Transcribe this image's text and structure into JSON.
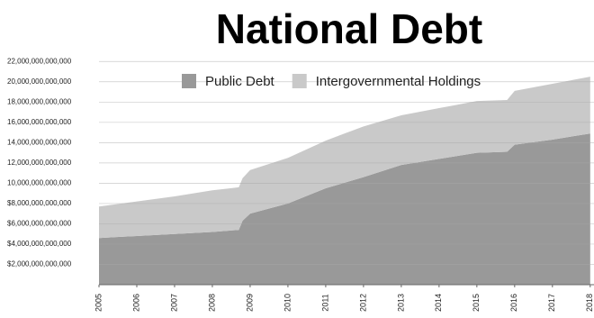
{
  "chart_data": {
    "type": "stacked-area",
    "title": "National Debt",
    "x": [
      2005,
      2006,
      2007,
      2008,
      2008.7,
      2008.8,
      2009,
      2010,
      2011,
      2012,
      2013,
      2014,
      2015,
      2015.8,
      2016,
      2017,
      2018
    ],
    "xlim": [
      2005,
      2018.1
    ],
    "xticks": [
      2005,
      2006,
      2007,
      2008,
      2009,
      2010,
      2011,
      2012,
      2013,
      2014,
      2015,
      2016,
      2017,
      2018
    ],
    "series": [
      {
        "name": "Public Debt",
        "color": "#999999",
        "values": [
          4600000000000,
          4800000000000,
          5000000000000,
          5200000000000,
          5400000000000,
          6300000000000,
          7000000000000,
          8000000000000,
          9500000000000,
          10600000000000,
          11800000000000,
          12400000000000,
          13000000000000,
          13100000000000,
          13800000000000,
          14300000000000,
          14900000000000
        ]
      },
      {
        "name": "Intergovernmental Holdings",
        "color": "#c9c9c9",
        "values": [
          3100000000000,
          3400000000000,
          3700000000000,
          4100000000000,
          4200000000000,
          4200000000000,
          4300000000000,
          4500000000000,
          4700000000000,
          5000000000000,
          4900000000000,
          5000000000000,
          5100000000000,
          5100000000000,
          5300000000000,
          5500000000000,
          5600000000000
        ]
      }
    ],
    "ylim": [
      0,
      23000000000000
    ],
    "yticks": [
      {
        "value": 2000000000000,
        "label": "$2,000,000,000,000"
      },
      {
        "value": 4000000000000,
        "label": "$4,000,000,000,000"
      },
      {
        "value": 6000000000000,
        "label": "$6,000,000,000,000"
      },
      {
        "value": 8000000000000,
        "label": "$8,000,000,000,000"
      },
      {
        "value": 10000000000000,
        "label": "10,000,000,000,000"
      },
      {
        "value": 12000000000000,
        "label": "12,000,000,000,000"
      },
      {
        "value": 14000000000000,
        "label": "14,000,000,000,000"
      },
      {
        "value": 16000000000000,
        "label": "16,000,000,000,000"
      },
      {
        "value": 18000000000000,
        "label": "18,000,000,000,000"
      },
      {
        "value": 20000000000000,
        "label": "20,000,000,000,000"
      },
      {
        "value": 22000000000000,
        "label": "22,000,000,000,000"
      }
    ],
    "grid": true,
    "legend": "top"
  }
}
